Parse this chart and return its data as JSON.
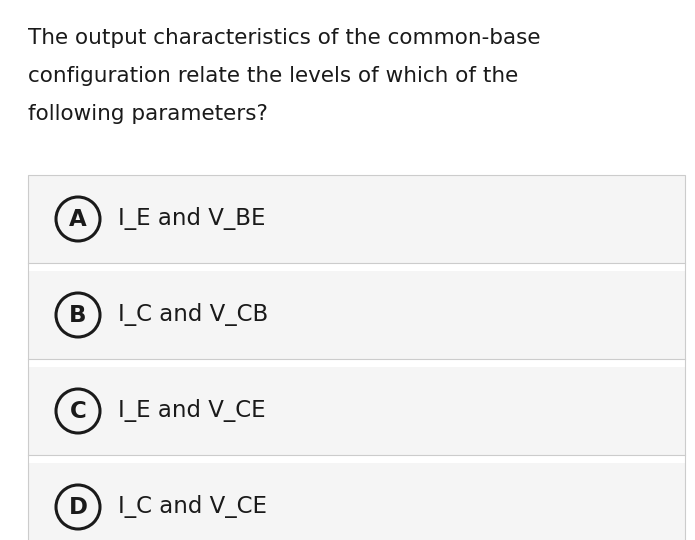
{
  "question_lines": [
    "The output characteristics of the common-base",
    "configuration relate the levels of which of the",
    "following parameters?"
  ],
  "options": [
    {
      "label": "A",
      "text": "I_E and V_BE"
    },
    {
      "label": "B",
      "text": "I_C and V_CB"
    },
    {
      "label": "C",
      "text": "I_E and V_CE"
    },
    {
      "label": "D",
      "text": "I_C and V_CE"
    }
  ],
  "bg_color": "#ffffff",
  "option_bg_color": "#f5f5f5",
  "separator_color": "#cccccc",
  "text_color": "#1a1a1a",
  "question_fontsize": 15.5,
  "option_fontsize": 16.5,
  "label_fontsize": 16.5,
  "fig_width": 6.95,
  "fig_height": 5.4,
  "dpi": 100
}
